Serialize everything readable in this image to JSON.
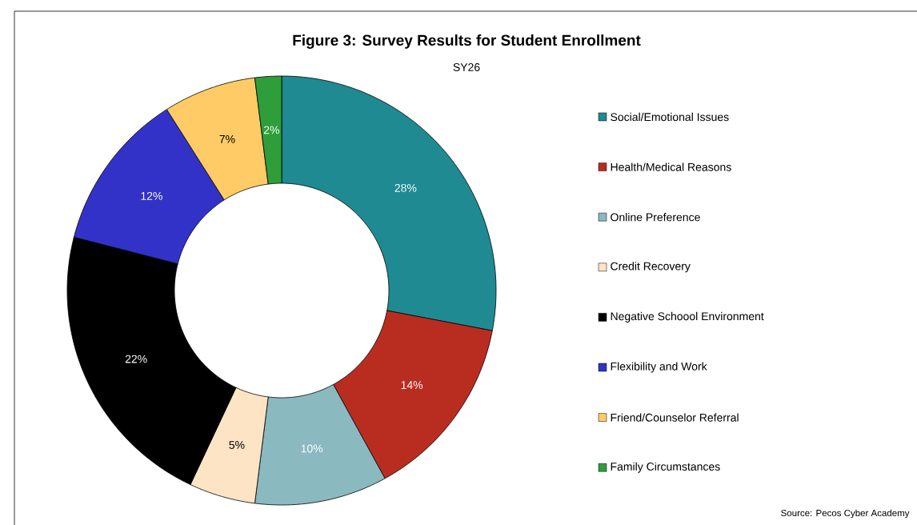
{
  "chart_data": {
    "type": "donut",
    "title": "Figure 3: Survey Results for Student Enrollment",
    "subtitle": "SY26",
    "categories": [
      "Social/Emotional Issues",
      "Health/Medical Reasons",
      "Online Preference",
      "Credit Recovery",
      "Negative Schoool Environment",
      "Flexibility and Work",
      "Friend/Counselor Referral",
      "Family Circumstances"
    ],
    "values": [
      28,
      14,
      10,
      5,
      22,
      12,
      7,
      2
    ],
    "value_labels": [
      "28%",
      "14%",
      "10%",
      "5%",
      "22%",
      "12%",
      "7%",
      "2%"
    ],
    "colors": [
      "#1f8a91",
      "#b92d20",
      "#8ab9c0",
      "#fde4c4",
      "#000000",
      "#3232c8",
      "#fecb66",
      "#2e9e3a"
    ],
    "legend": "right",
    "annotations": [
      "Source: Pecos Cyber Academy"
    ]
  }
}
